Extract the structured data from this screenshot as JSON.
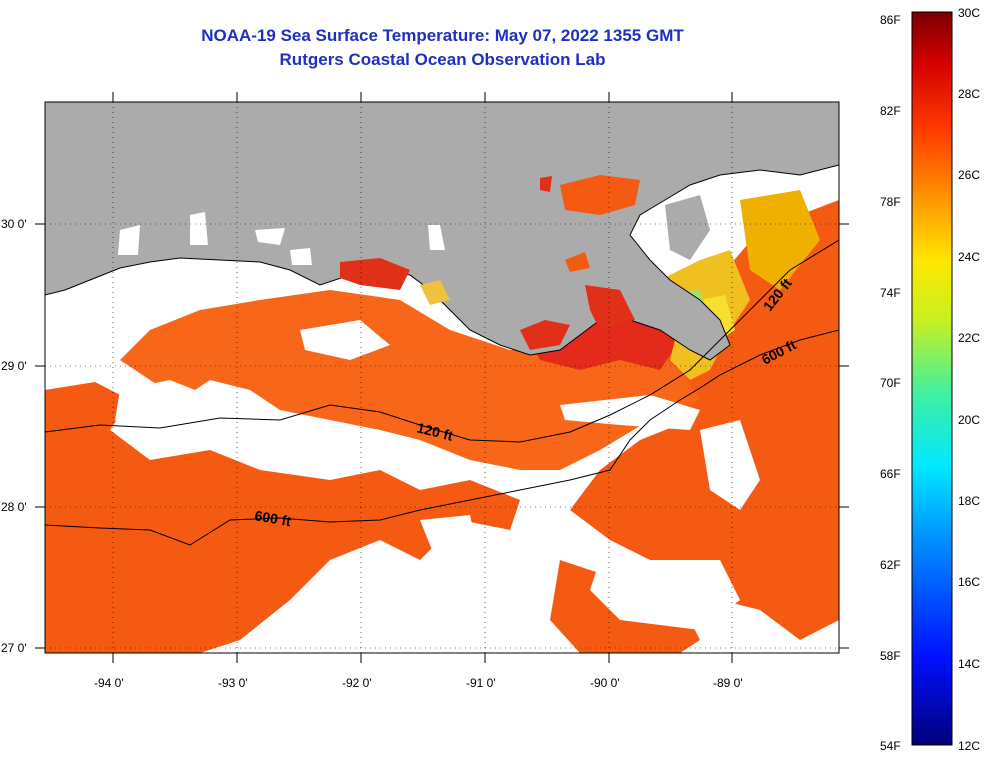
{
  "title": {
    "line1": "NOAA-19 Sea Surface Temperature:  May 07, 2022 1355 GMT",
    "line2": "Rutgers Coastal Ocean Observation Lab"
  },
  "map": {
    "lon_labels": [
      "-94 0'",
      "-93 0'",
      "-92 0'",
      "-91 0'",
      "-90 0'",
      "-89 0'"
    ],
    "lat_labels": [
      "30 0'",
      "29 0'",
      "28 0'",
      "27 0'"
    ],
    "contours": [
      {
        "label": "120 ft"
      },
      {
        "label": "600 ft"
      },
      {
        "label": "120 ft"
      },
      {
        "label": "600 ft"
      }
    ],
    "colors": {
      "land": "#ababab",
      "cloud": "#ffffff",
      "warm": "#f55a12",
      "hot": "#e01e1e",
      "cool": "#f5c000"
    }
  },
  "colorbar": {
    "fahrenheit": [
      "86F",
      "82F",
      "78F",
      "74F",
      "70F",
      "66F",
      "62F",
      "58F",
      "54F"
    ],
    "celsius": [
      "30C",
      "28C",
      "26C",
      "24C",
      "22C",
      "20C",
      "18C",
      "16C",
      "14C",
      "12C"
    ]
  }
}
